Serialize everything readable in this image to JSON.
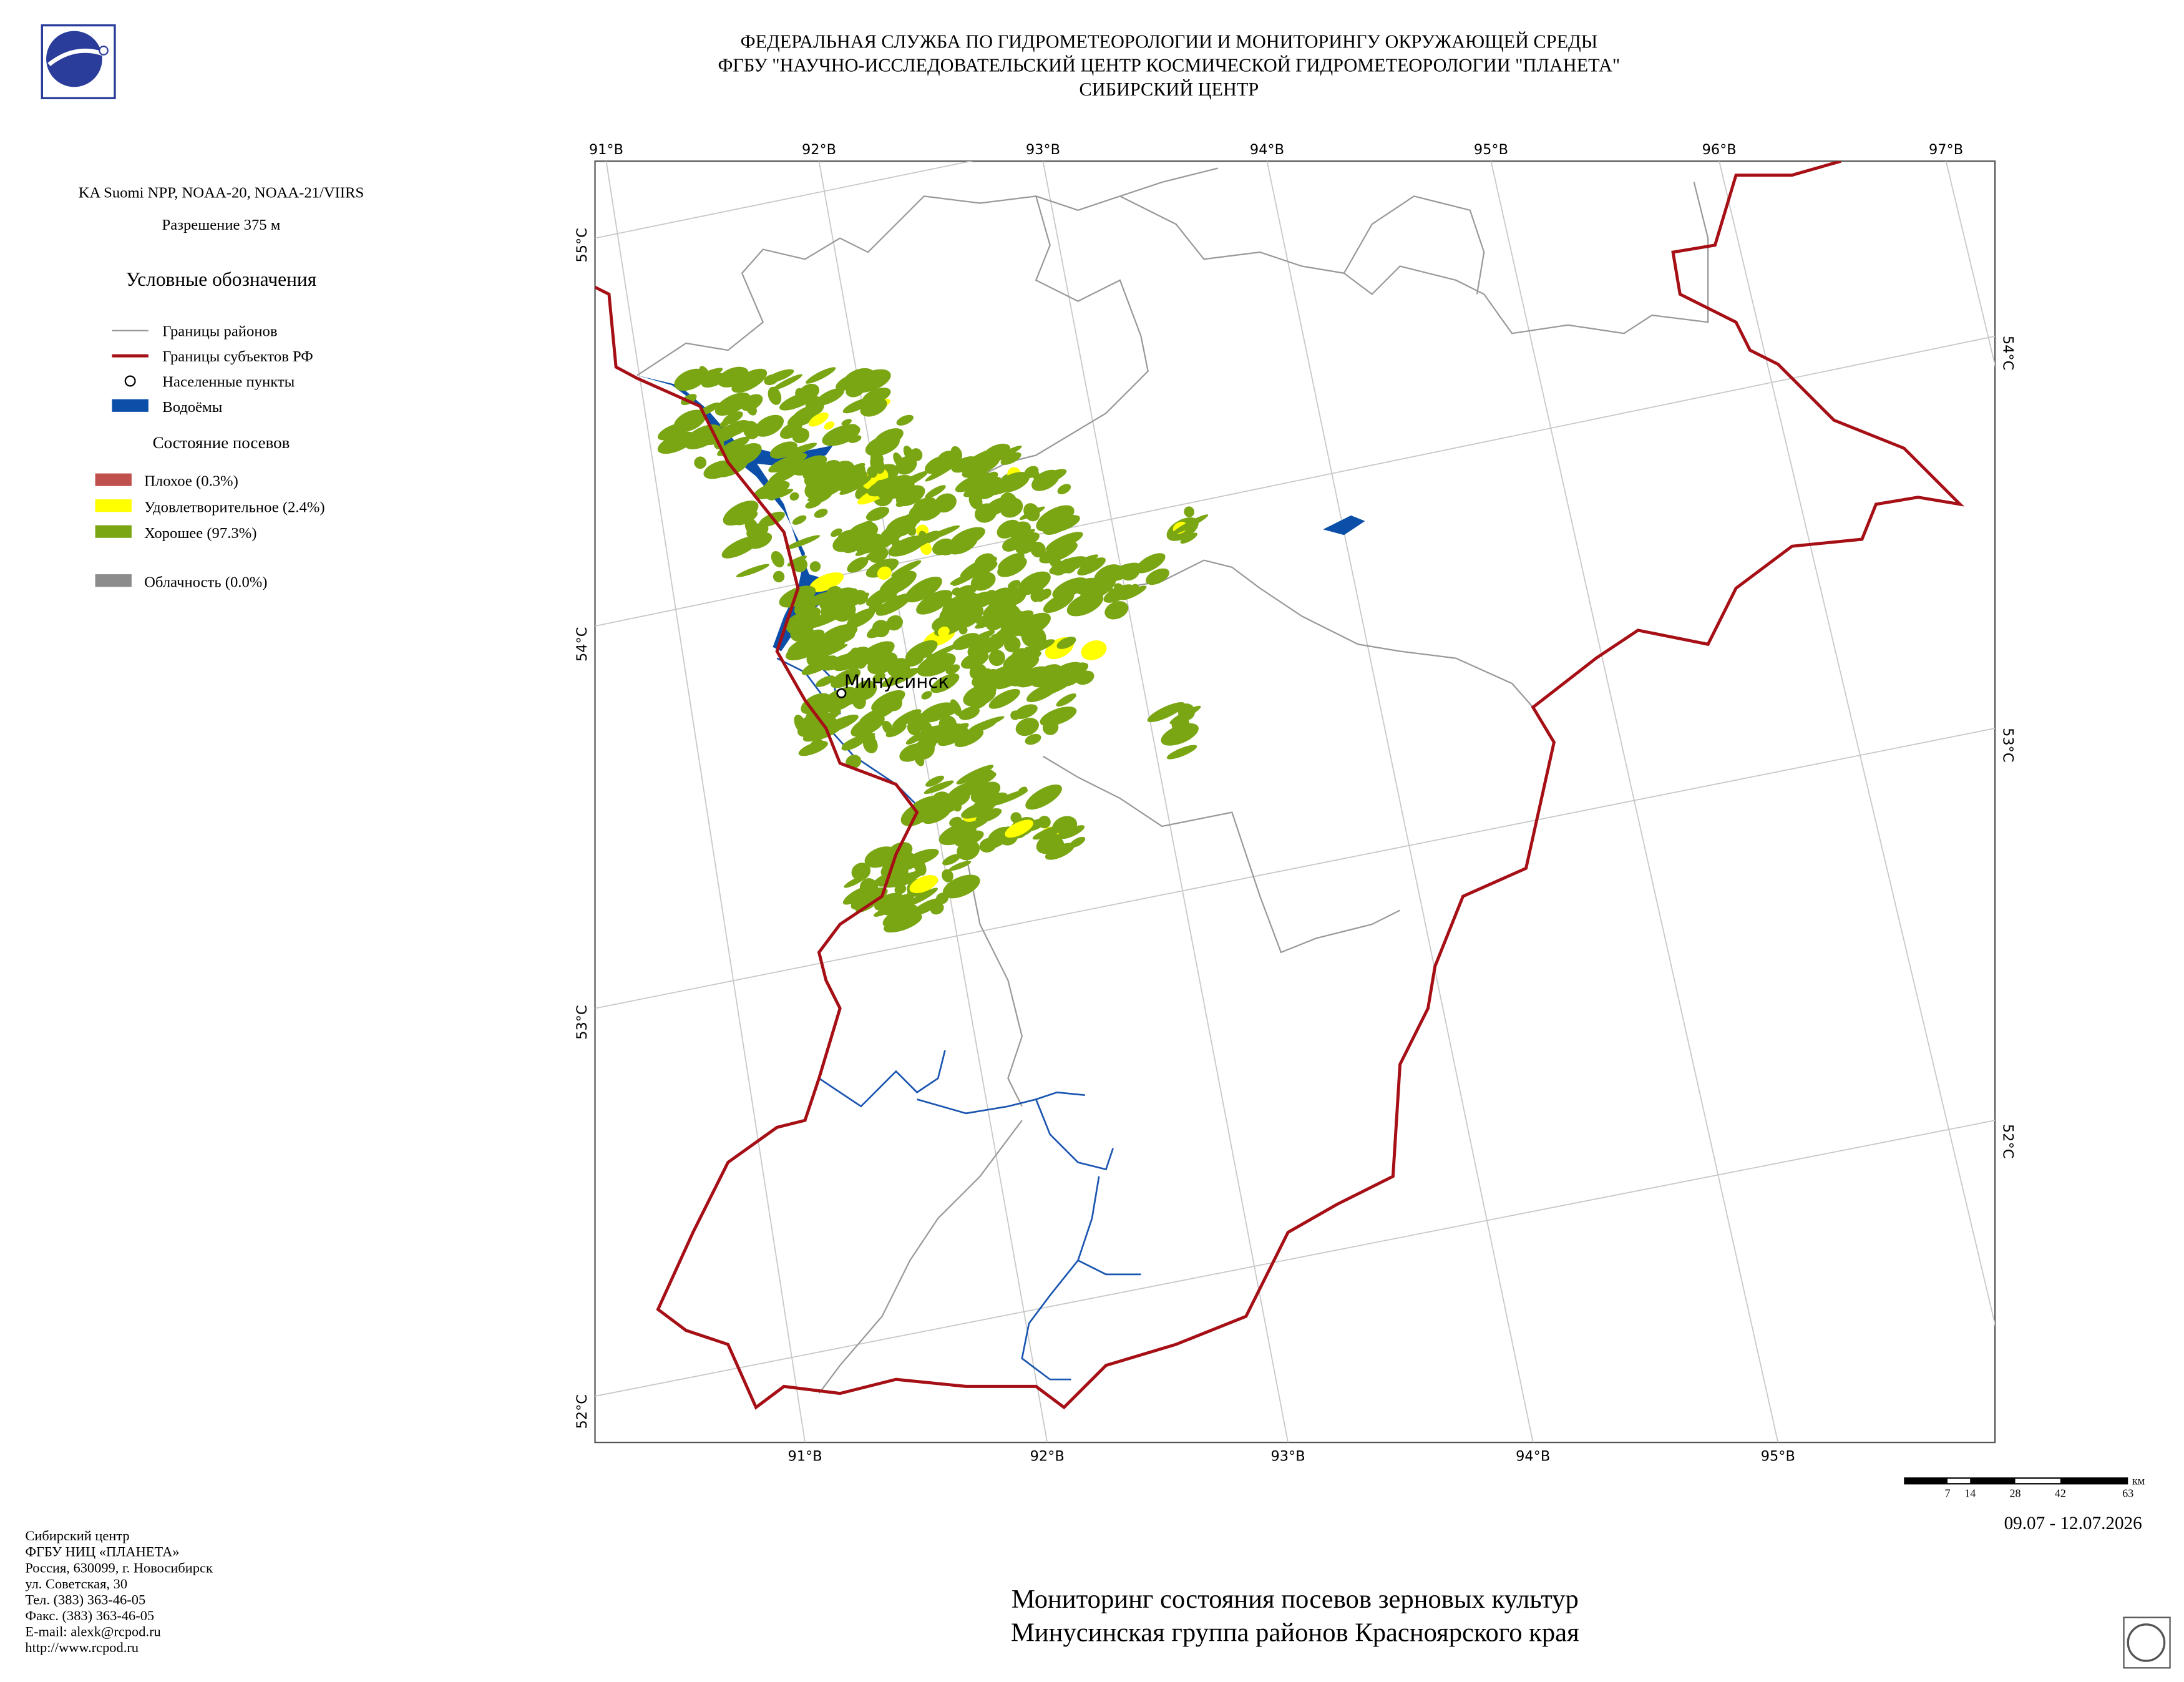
{
  "header": {
    "lines": [
      "ФЕДЕРАЛЬНАЯ СЛУЖБА ПО ГИДРОМЕТЕОРОЛОГИИ И МОНИТОРИНГУ ОКРУЖАЮЩЕЙ СРЕДЫ",
      "ФГБУ \"НАУЧНО-ИССЛЕДОВАТЕЛЬСКИЙ ЦЕНТР КОСМИЧЕСКОЙ ГИДРОМЕТЕОРОЛОГИИ \"ПЛАНЕТА\"",
      "СИБИРСКИЙ ЦЕНТР"
    ]
  },
  "sidebar": {
    "satellite": "KA Suomi NPP, NOAA-20, NOAA-21/VIIRS",
    "resolution": "Разрешение 375 м",
    "legend_title": "Условные обозначения",
    "legend": [
      {
        "label": "Границы районов",
        "color": "#999999"
      },
      {
        "label": "Границы субъектов РФ",
        "color": "#a50f15"
      },
      {
        "label": "Населенные пункты",
        "color": "#000000"
      },
      {
        "label": "Водоёмы",
        "color": "#0b4fa8"
      }
    ],
    "crop_title": "Состояние посевов",
    "crop_legend": [
      {
        "label": "Плохое (0.3%)",
        "color": "#c0504d"
      },
      {
        "label": "Удовлетворительное (2.4%)",
        "color": "#ffff00"
      },
      {
        "label": "Хорошее (97.3%)",
        "color": "#7aa614"
      }
    ],
    "cloud": {
      "label": "Облачность (0.0%)",
      "color": "#8c8c8c"
    }
  },
  "map": {
    "top_lon_labels": [
      "91°В",
      "92°В",
      "93°В",
      "94°В",
      "95°В",
      "96°В",
      "97°В"
    ],
    "bottom_lon_labels": [
      "91°В",
      "92°В",
      "93°В",
      "94°В",
      "95°В"
    ],
    "left_lat_labels": [
      "55°С",
      "54°С",
      "53°С",
      "52°С"
    ],
    "right_lat_labels": [
      "54°С",
      "53°С",
      "52°С"
    ],
    "city": "Минусинск",
    "scale_ticks": [
      7,
      14,
      28,
      42,
      63
    ],
    "scale_unit": "км",
    "date": "09.07 - 12.07.2026"
  },
  "footer": {
    "address": [
      "Сибирский центр",
      "ФГБУ НИЦ «ПЛАНЕТА»",
      "Россия, 630099, г. Новосибирск",
      "ул. Советская, 30",
      "Тел. (383) 363-46-05",
      "Факс. (383) 363-46-05",
      "E-mail: alexk@rcpod.ru",
      "http://www.rcpod.ru"
    ],
    "title": [
      "Мониторинг состояния посевов зерновых культур",
      "Минусинская группа районов Красноярского края"
    ]
  }
}
